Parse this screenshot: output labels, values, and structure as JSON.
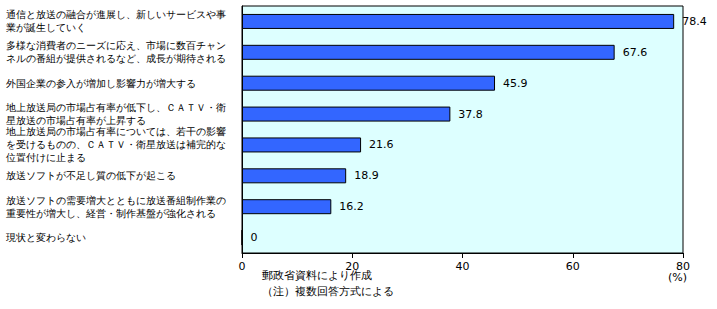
{
  "chart_data": {
    "type": "bar",
    "orientation": "horizontal",
    "categories": [
      "通信と放送の融合が進展し、新しいサービスや事業が誕生していく",
      "多様な消費者のニーズに応え、市場に数百チャンネルの番組が提供されるなど、成長が期待される",
      "外国企業の参入が増加し影響力が増大する",
      "地上放送局の市場占有率が低下し、ＣＡＴＶ・衛星放送の市場占有率が上昇する",
      "地上放送局の市場占有率については、若干の影響を受けるものの、ＣＡＴＶ・衛星放送は補完的な位置付けに止まる",
      "放送ソフトが不足し質の低下が起こる",
      "放送ソフトの需要増大とともに放送番組制作業の重要性が増大し、経営・制作基盤が強化される",
      "現状と変わらない"
    ],
    "values": [
      78.4,
      67.6,
      45.9,
      37.8,
      21.6,
      18.9,
      16.2,
      0
    ],
    "color": "#3366ff",
    "xlim": [
      0,
      80
    ],
    "xticks": [
      0,
      20,
      40,
      60,
      80
    ],
    "x_label": "(%)",
    "annotations": [
      "郵政省資料により作成",
      "（注）複数回答方式による"
    ],
    "data_labels": true,
    "grid": false
  }
}
